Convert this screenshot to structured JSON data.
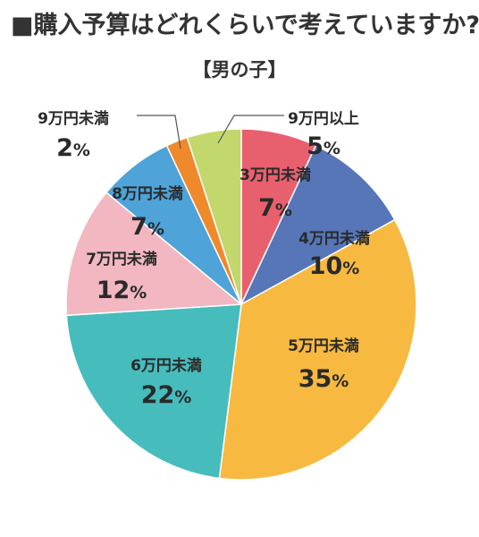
{
  "chart_data": {
    "type": "pie",
    "title": "■購入予算はどれくらいで考えていますか?",
    "subtitle": "【男の子】",
    "unit": "%",
    "slices": [
      {
        "label": "3万円未満",
        "value": 7,
        "color": "#e8606e"
      },
      {
        "label": "4万円未満",
        "value": 10,
        "color": "#5676b8"
      },
      {
        "label": "5万円未満",
        "value": 35,
        "color": "#f7b940"
      },
      {
        "label": "6万円未満",
        "value": 22,
        "color": "#46bcbd"
      },
      {
        "label": "7万円未満",
        "value": 12,
        "color": "#f2b7c0"
      },
      {
        "label": "8万円未満",
        "value": 7,
        "color": "#4ea3d8"
      },
      {
        "label": "9万円未満",
        "value": 2,
        "color": "#f0892c"
      },
      {
        "label": "9万円以上",
        "value": 5,
        "color": "#c2d86c"
      }
    ],
    "start_angle": "top",
    "direction": "clockwise"
  }
}
